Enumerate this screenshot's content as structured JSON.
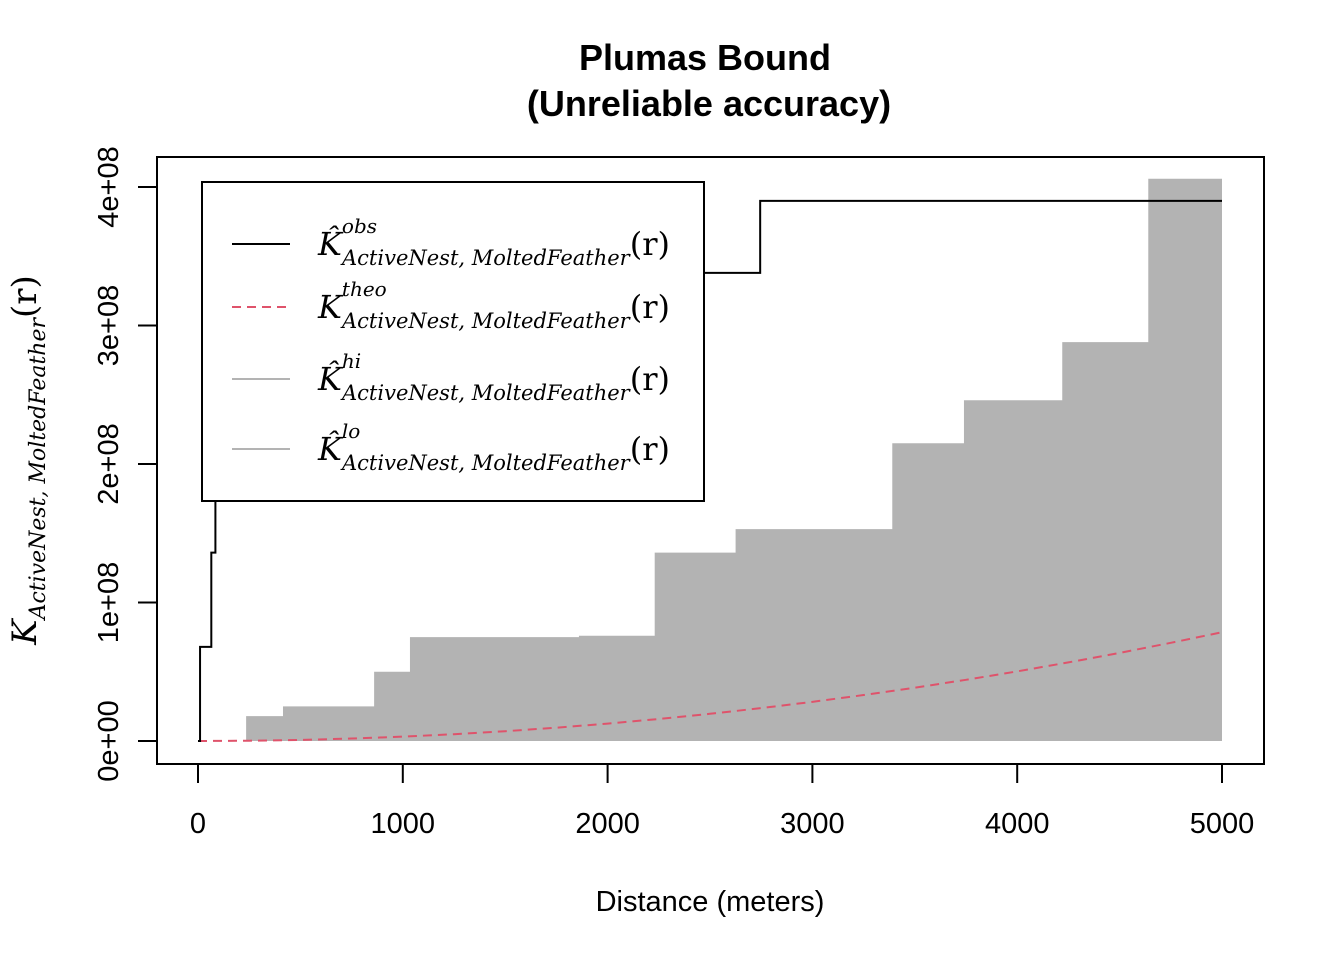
{
  "chart_data": {
    "type": "line",
    "title": "Plumas Bound",
    "subtitle": "(Unreliable accuracy)",
    "xlabel": "Distance (meters)",
    "ylabel": {
      "main": "K",
      "subscript": "ActiveNest, MoltedFeather",
      "argument": "(r)"
    },
    "xlim": [
      0,
      5000
    ],
    "ylim": [
      0,
      400000000
    ],
    "x_ticks": [
      0,
      1000,
      2000,
      3000,
      4000,
      5000
    ],
    "x_tick_labels": [
      "0",
      "1000",
      "2000",
      "3000",
      "4000",
      "5000"
    ],
    "y_ticks": [
      0,
      100000000,
      200000000,
      300000000,
      400000000
    ],
    "y_tick_labels": [
      "0e+00",
      "1e+08",
      "2e+08",
      "3e+08",
      "4e+08"
    ],
    "grid": false,
    "legend_position": "top-left",
    "series": [
      {
        "name": "obs",
        "legend": {
          "main": "K̂",
          "superscript": "obs",
          "subscript": "ActiveNest, MoltedFeather",
          "argument": "(r)"
        },
        "style": "step",
        "color": "#000000",
        "x": [
          0,
          10,
          10,
          65,
          65,
          85,
          85,
          105,
          105,
          490,
          490,
          1495,
          1495,
          1525,
          1525,
          1745,
          1745,
          2745,
          2745,
          5000
        ],
        "y": [
          0,
          0,
          68000000,
          68000000,
          136000000,
          136000000,
          203000000,
          203000000,
          236000000,
          236000000,
          270000000,
          270000000,
          304000000,
          304000000,
          338000000,
          338000000,
          338000000,
          338000000,
          390000000,
          390000000
        ]
      },
      {
        "name": "theo",
        "legend": {
          "main": "K",
          "superscript": "theo",
          "subscript": "ActiveNest, MoltedFeather",
          "argument": "(r)"
        },
        "style": "dashed",
        "color": "#DF536B",
        "x": [
          0,
          250,
          500,
          750,
          1000,
          1250,
          1500,
          1750,
          2000,
          2250,
          2500,
          2750,
          3000,
          3250,
          3500,
          3750,
          4000,
          4250,
          4500,
          4750,
          5000
        ],
        "y": [
          0,
          196000,
          785000,
          1767000,
          3142000,
          4909000,
          7069000,
          9621000,
          12566000,
          15904000,
          19635000,
          23758000,
          28274000,
          33183000,
          38485000,
          44179000,
          50265000,
          56745000,
          63617000,
          70882000,
          78540000
        ]
      },
      {
        "name": "hi",
        "legend": {
          "main": "K̂",
          "superscript": "hi",
          "subscript": "ActiveNest, MoltedFeather",
          "argument": "(r)"
        },
        "style": "band-upper",
        "color": "#B3B3B3",
        "x": [
          0,
          235,
          235,
          415,
          415,
          860,
          860,
          1035,
          1035,
          1860,
          1860,
          2230,
          2230,
          2625,
          2625,
          3390,
          3390,
          3740,
          3740,
          4220,
          4220,
          4640,
          4640,
          5000
        ],
        "y": [
          0,
          0,
          18000000,
          18000000,
          25000000,
          25000000,
          50000000,
          50000000,
          75000000,
          75000000,
          76000000,
          76000000,
          136000000,
          136000000,
          153000000,
          153000000,
          215000000,
          215000000,
          246000000,
          246000000,
          288000000,
          288000000,
          406000000,
          406000000
        ]
      },
      {
        "name": "lo",
        "legend": {
          "main": "K̂",
          "superscript": "lo",
          "subscript": "ActiveNest, MoltedFeather",
          "argument": "(r)"
        },
        "style": "band-lower",
        "color": "#B3B3B3",
        "x": [
          0,
          5000
        ],
        "y": [
          0,
          0
        ]
      }
    ]
  }
}
